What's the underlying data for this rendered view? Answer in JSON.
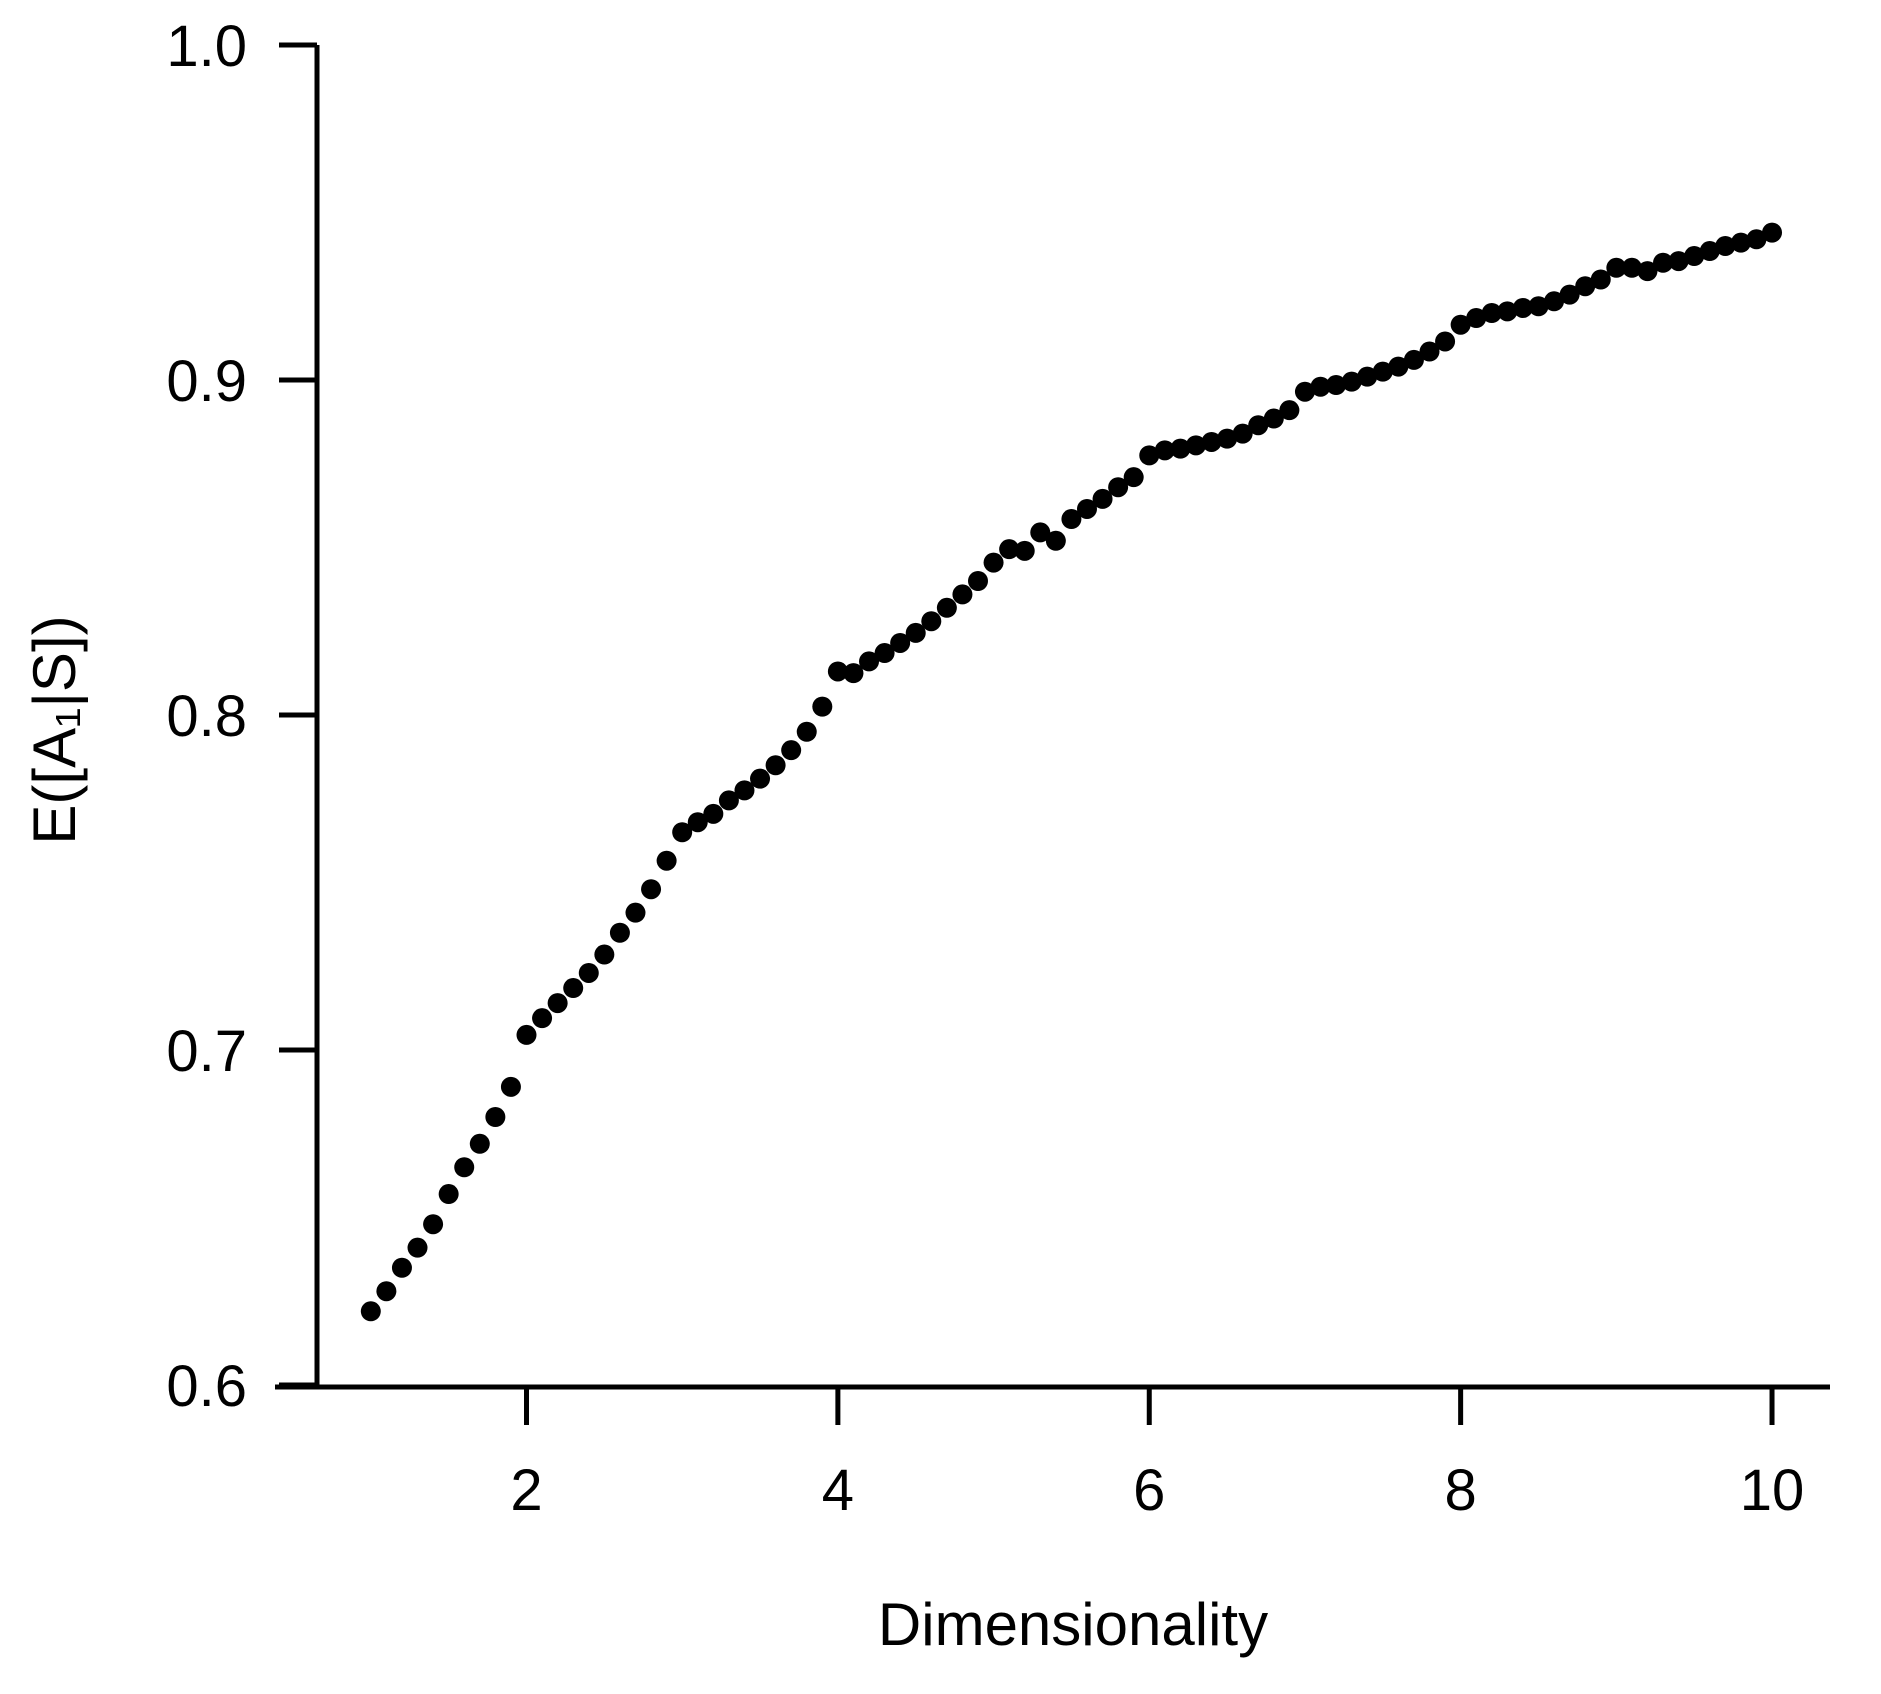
{
  "chart_data": {
    "type": "scatter",
    "title": "",
    "xlabel": "Dimensionality",
    "ylabel": "E([A₁|S])",
    "marker": "filled-circle",
    "point_color": "#000000",
    "background_color": "#ffffff",
    "grid": false,
    "legend": null,
    "xlim": [
      0.6,
      10.4
    ],
    "ylim": [
      0.6,
      1.0
    ],
    "xticks": [
      2,
      4,
      6,
      8,
      10
    ],
    "ytick_labels": [
      "0.6",
      "0.7",
      "0.8",
      "0.9",
      "1.0"
    ],
    "yticks": [
      0.6,
      0.7,
      0.8,
      0.9,
      1.0
    ],
    "x": [
      1.0,
      1.1,
      1.2,
      1.3,
      1.4,
      1.5,
      1.6,
      1.7,
      1.8,
      1.9,
      2.0,
      2.1,
      2.2,
      2.3,
      2.4,
      2.5,
      2.6,
      2.7,
      2.8,
      2.9,
      3.0,
      3.1,
      3.2,
      3.3,
      3.4,
      3.5,
      3.6,
      3.7,
      3.8,
      3.9,
      4.0,
      4.1,
      4.2,
      4.3,
      4.4,
      4.5,
      4.6,
      4.7,
      4.8,
      4.9,
      5.0,
      5.1,
      5.2,
      5.3,
      5.4,
      5.5,
      5.6,
      5.7,
      5.8,
      5.9,
      6.0,
      6.1,
      6.2,
      6.3,
      6.4,
      6.5,
      6.6,
      6.7,
      6.8,
      6.9,
      7.0,
      7.1,
      7.2,
      7.3,
      7.4,
      7.5,
      7.6,
      7.7,
      7.8,
      7.9,
      8.0,
      8.1,
      8.2,
      8.3,
      8.4,
      8.5,
      8.6,
      8.7,
      8.8,
      8.9,
      9.0,
      9.1,
      9.2,
      9.3,
      9.4,
      9.5,
      9.6,
      9.7,
      9.8,
      9.9,
      10.0
    ],
    "y": [
      0.622,
      0.628,
      0.635,
      0.641,
      0.648,
      0.657,
      0.665,
      0.672,
      0.68,
      0.689,
      0.7045,
      0.7095,
      0.714,
      0.7185,
      0.723,
      0.7285,
      0.735,
      0.741,
      0.748,
      0.7565,
      0.765,
      0.768,
      0.7705,
      0.7745,
      0.7775,
      0.781,
      0.785,
      0.7895,
      0.795,
      0.8025,
      0.813,
      0.8125,
      0.816,
      0.8185,
      0.8215,
      0.8245,
      0.828,
      0.832,
      0.836,
      0.84,
      0.8455,
      0.8495,
      0.849,
      0.8545,
      0.852,
      0.8585,
      0.8615,
      0.8645,
      0.868,
      0.871,
      0.8775,
      0.879,
      0.8795,
      0.8805,
      0.8815,
      0.8825,
      0.884,
      0.8865,
      0.8885,
      0.891,
      0.8965,
      0.898,
      0.8985,
      0.8995,
      0.901,
      0.9025,
      0.904,
      0.906,
      0.9085,
      0.9115,
      0.9165,
      0.9185,
      0.92,
      0.9205,
      0.9215,
      0.922,
      0.9235,
      0.9255,
      0.928,
      0.93,
      0.9335,
      0.9335,
      0.9325,
      0.935,
      0.9355,
      0.937,
      0.9385,
      0.94,
      0.941,
      0.942,
      0.944
    ]
  }
}
